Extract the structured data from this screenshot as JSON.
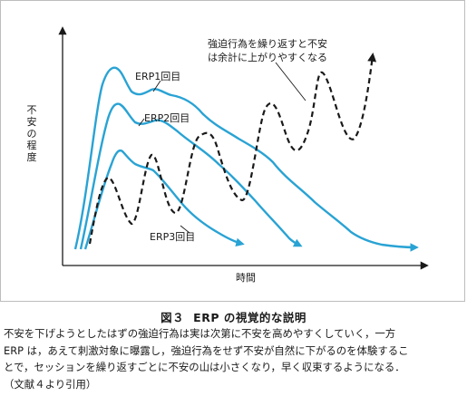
{
  "figure": {
    "y_axis_label": "不安の程度",
    "x_axis_label": "時間",
    "series": [
      {
        "id": "erp1",
        "label": "ERP1回目",
        "color": "#29a3d4"
      },
      {
        "id": "erp2",
        "label": "ERP2回目",
        "color": "#29a3d4"
      },
      {
        "id": "erp3",
        "label": "ERP3回目",
        "color": "#29a3d4"
      },
      {
        "id": "ritual",
        "label_line1": "強迫行為を繰り返すと不安",
        "label_line2": "は余計に上がりやすくなる",
        "color": "#1a1a1a",
        "style": "dashed"
      }
    ]
  },
  "caption": {
    "figure_number": "図３",
    "title": "ERP の視覚的な説明",
    "lines": [
      "不安を下げようとしたはずの強迫行為は実は次第に不安を高めやすくしていく，一方",
      "ERP は，あえて刺激対象に曝露し，強迫行為をせず不安が自然に下がるのを体験するこ",
      "とで，セッションを繰り返すごとに不安の山は小さくなり，早く収束するようになる．",
      "（文献４より引用）"
    ]
  }
}
